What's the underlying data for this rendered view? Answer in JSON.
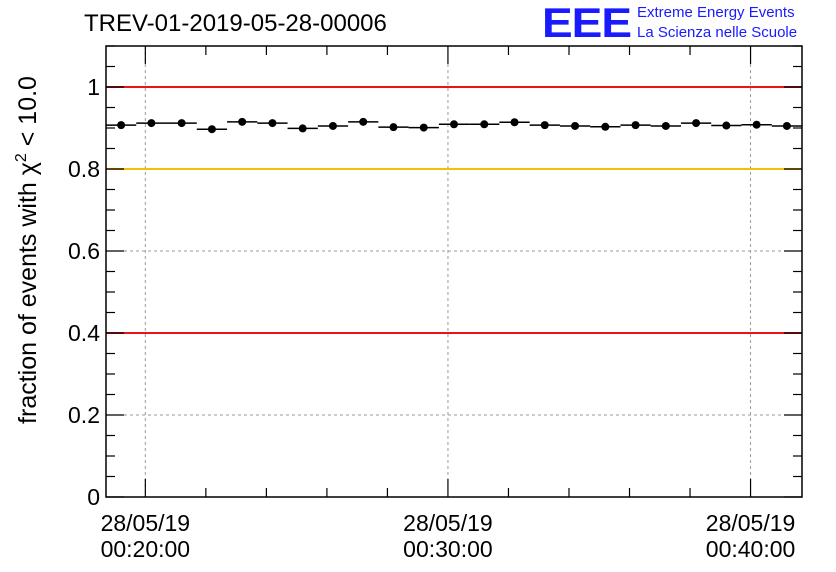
{
  "header": {
    "title": "TREV-01-2019-05-28-00006",
    "logo_mark": "EEE",
    "logo_line1": "Extreme Energy Events",
    "logo_line2": "La Scienza nelle Scuole"
  },
  "colors": {
    "data": "#000000",
    "red_line": "#e8141a",
    "yellow_line": "#f5c000",
    "grid": "#9a9a9a",
    "logo": "#1a1aff"
  },
  "chart_data": {
    "type": "scatter",
    "title": "TREV-01-2019-05-28-00006",
    "xlabel": "",
    "ylabel_prefix": "fraction of events with ",
    "ylabel_symbol": "χ",
    "ylabel_exponent": "2",
    "ylabel_suffix": " < 10.0",
    "xlim_minutes": [
      18.7,
      41.7
    ],
    "ylim": [
      0,
      1.1
    ],
    "grid": true,
    "y_ticks": [
      0,
      0.2,
      0.4,
      0.6,
      0.8,
      1
    ],
    "y_tick_labels": [
      "0",
      "0.2",
      "0.4",
      "0.6",
      "0.8",
      "1"
    ],
    "x_ticks": [
      {
        "minutes": 20,
        "date": "28/05/19",
        "time": "00:20:00"
      },
      {
        "minutes": 30,
        "date": "28/05/19",
        "time": "00:30:00"
      },
      {
        "minutes": 40,
        "date": "28/05/19",
        "time": "00:40:00"
      }
    ],
    "reference_lines": [
      {
        "y": 1.0,
        "color": "red"
      },
      {
        "y": 0.8,
        "color": "yellow"
      },
      {
        "y": 0.4,
        "color": "red"
      }
    ],
    "bin_width_minutes": 1,
    "series": [
      {
        "name": "fraction",
        "x_minutes": [
          19.2,
          20.2,
          21.2,
          22.2,
          23.2,
          24.2,
          25.2,
          26.2,
          27.2,
          28.2,
          29.2,
          30.2,
          31.2,
          32.2,
          33.2,
          34.2,
          35.2,
          36.2,
          37.2,
          38.2,
          39.2,
          40.2,
          41.2
        ],
        "values": [
          0.907,
          0.912,
          0.912,
          0.897,
          0.915,
          0.912,
          0.899,
          0.905,
          0.915,
          0.902,
          0.901,
          0.909,
          0.909,
          0.914,
          0.907,
          0.905,
          0.903,
          0.907,
          0.905,
          0.912,
          0.906,
          0.908,
          0.905
        ]
      }
    ]
  }
}
